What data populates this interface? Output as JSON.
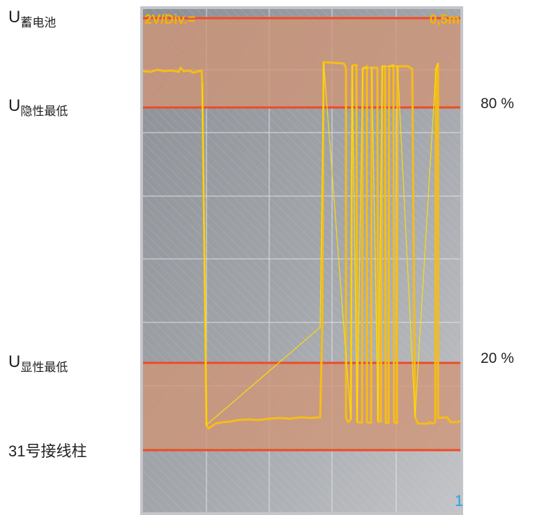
{
  "labels": {
    "battery": {
      "main": "U",
      "sub": "蓄电池"
    },
    "recessive_min": {
      "main": "U",
      "sub": "隐性最低"
    },
    "dominant_min": {
      "main": "U",
      "sub": "显性最低"
    },
    "terminal": "31号接线柱"
  },
  "percent": {
    "high": "80 %",
    "low": "20 %"
  },
  "scope": {
    "volt_div": "2V/Div.=",
    "time_div": "0,5m",
    "channel": "1"
  },
  "colors": {
    "ref_line": "#ee4a24",
    "zone": "#ce9478",
    "trace": "#f6bd16",
    "trace_bright": "#ffe000",
    "screen": "#a6a9ae",
    "channel_text": "#1aa6e8"
  }
}
